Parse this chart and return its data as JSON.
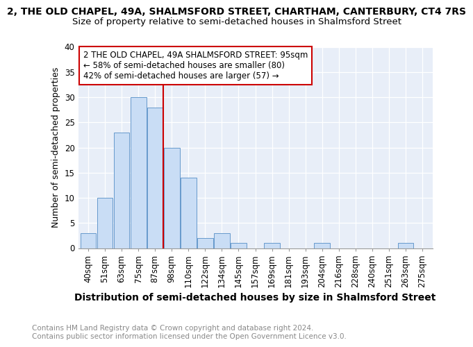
{
  "title": "2, THE OLD CHAPEL, 49A, SHALMSFORD STREET, CHARTHAM, CANTERBURY, CT4 7RS",
  "subtitle": "Size of property relative to semi-detached houses in Shalmsford Street",
  "xlabel": "Distribution of semi-detached houses by size in Shalmsford Street",
  "ylabel": "Number of semi-detached properties",
  "categories": [
    "40sqm",
    "51sqm",
    "63sqm",
    "75sqm",
    "87sqm",
    "98sqm",
    "110sqm",
    "122sqm",
    "134sqm",
    "145sqm",
    "157sqm",
    "169sqm",
    "181sqm",
    "193sqm",
    "204sqm",
    "216sqm",
    "228sqm",
    "240sqm",
    "251sqm",
    "263sqm",
    "275sqm"
  ],
  "values": [
    3,
    10,
    23,
    30,
    28,
    20,
    14,
    2,
    3,
    1,
    0,
    1,
    0,
    0,
    1,
    0,
    0,
    0,
    0,
    1,
    0
  ],
  "bar_color": "#c9ddf5",
  "bar_edge_color": "#6699cc",
  "vline_x_index": 5,
  "vline_color": "#cc0000",
  "annotation_text": "2 THE OLD CHAPEL, 49A SHALMSFORD STREET: 95sqm\n← 58% of semi-detached houses are smaller (80)\n42% of semi-detached houses are larger (57) →",
  "annotation_box_color": "#ffffff",
  "annotation_box_edge": "#cc0000",
  "ylim": [
    0,
    40
  ],
  "yticks": [
    0,
    5,
    10,
    15,
    20,
    25,
    30,
    35,
    40
  ],
  "footer1": "Contains HM Land Registry data © Crown copyright and database right 2024.",
  "footer2": "Contains public sector information licensed under the Open Government Licence v3.0.",
  "fig_bg_color": "#ffffff",
  "plot_bg_color": "#e8eef8",
  "title_fontsize": 10,
  "subtitle_fontsize": 9.5,
  "xlabel_fontsize": 10,
  "ylabel_fontsize": 9,
  "tick_fontsize": 8.5,
  "annotation_fontsize": 8.5,
  "footer_fontsize": 7.5
}
